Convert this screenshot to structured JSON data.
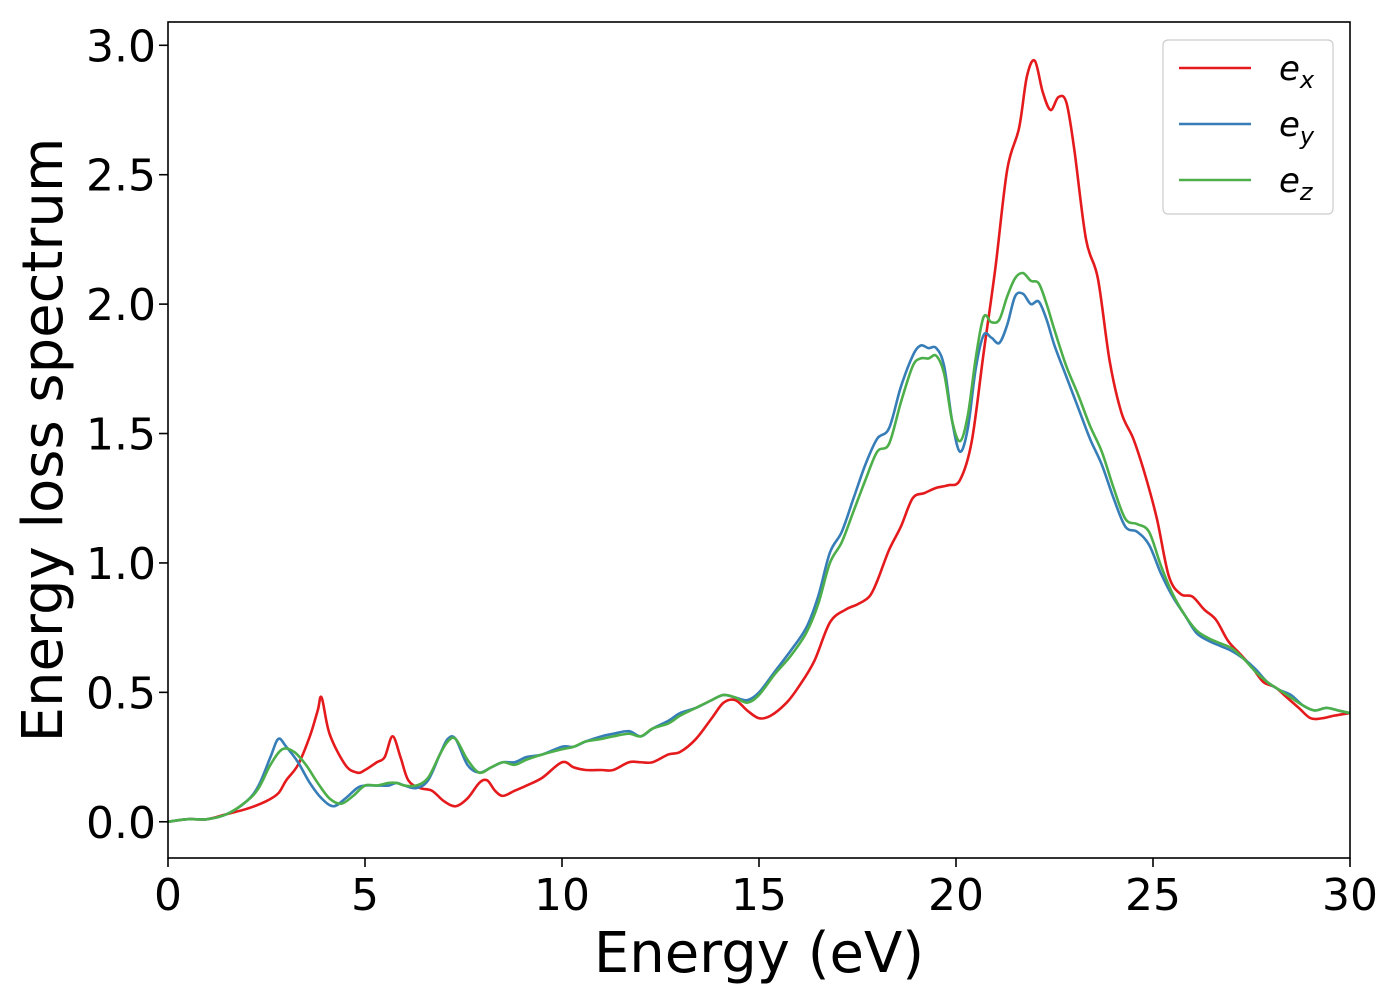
{
  "chart_data": {
    "type": "line",
    "xlabel": "Energy (eV)",
    "ylabel": "Energy loss spectrum",
    "xlim": [
      0,
      30
    ],
    "ylim": [
      -0.14,
      3.09
    ],
    "xticks": [
      0,
      5,
      10,
      15,
      20,
      25,
      30
    ],
    "xtick_labels": [
      "0",
      "5",
      "10",
      "15",
      "20",
      "25",
      "30"
    ],
    "yticks": [
      0.0,
      0.5,
      1.0,
      1.5,
      2.0,
      2.5,
      3.0
    ],
    "ytick_labels": [
      "0.0",
      "0.5",
      "1.0",
      "1.5",
      "2.0",
      "2.5",
      "3.0"
    ],
    "grid": false,
    "legend_position": "top-right",
    "series": [
      {
        "name": "e_x",
        "label_main": "e",
        "label_sub": "x",
        "color": "#e41a1c",
        "x": [
          0,
          0.5,
          1.0,
          1.5,
          2.0,
          2.5,
          2.8,
          3.0,
          3.3,
          3.6,
          3.8,
          3.9,
          4.1,
          4.5,
          4.8,
          5.0,
          5.3,
          5.5,
          5.7,
          5.9,
          6.1,
          6.4,
          6.7,
          7.0,
          7.3,
          7.6,
          7.9,
          8.1,
          8.3,
          8.5,
          8.8,
          9.1,
          9.5,
          10.0,
          10.3,
          10.6,
          11.0,
          11.3,
          11.7,
          12.0,
          12.3,
          12.7,
          13.0,
          13.4,
          13.8,
          14.1,
          14.4,
          14.7,
          15.0,
          15.3,
          15.7,
          16.0,
          16.4,
          16.8,
          17.2,
          17.5,
          17.8,
          18.0,
          18.3,
          18.6,
          18.9,
          19.2,
          19.5,
          19.8,
          20.1,
          20.4,
          20.7,
          21.0,
          21.3,
          21.6,
          21.8,
          22.0,
          22.2,
          22.4,
          22.6,
          22.8,
          23.0,
          23.3,
          23.6,
          23.9,
          24.2,
          24.5,
          24.8,
          25.1,
          25.4,
          25.7,
          26.0,
          26.3,
          26.6,
          26.9,
          27.2,
          27.5,
          27.8,
          28.1,
          28.4,
          28.7,
          29.0,
          29.3,
          29.6,
          30.0
        ],
        "y": [
          0.0,
          0.01,
          0.01,
          0.03,
          0.05,
          0.08,
          0.11,
          0.16,
          0.22,
          0.33,
          0.43,
          0.48,
          0.34,
          0.22,
          0.19,
          0.2,
          0.23,
          0.25,
          0.33,
          0.25,
          0.16,
          0.13,
          0.12,
          0.08,
          0.06,
          0.09,
          0.15,
          0.16,
          0.12,
          0.1,
          0.12,
          0.14,
          0.17,
          0.23,
          0.21,
          0.2,
          0.2,
          0.2,
          0.23,
          0.23,
          0.23,
          0.26,
          0.27,
          0.32,
          0.4,
          0.46,
          0.47,
          0.43,
          0.4,
          0.41,
          0.46,
          0.52,
          0.62,
          0.77,
          0.82,
          0.84,
          0.87,
          0.93,
          1.05,
          1.14,
          1.25,
          1.27,
          1.29,
          1.3,
          1.32,
          1.47,
          1.81,
          2.14,
          2.52,
          2.68,
          2.88,
          2.94,
          2.82,
          2.75,
          2.8,
          2.78,
          2.6,
          2.25,
          2.1,
          1.78,
          1.58,
          1.48,
          1.34,
          1.17,
          0.95,
          0.88,
          0.87,
          0.82,
          0.78,
          0.7,
          0.65,
          0.6,
          0.54,
          0.52,
          0.48,
          0.44,
          0.4,
          0.4,
          0.41,
          0.42
        ]
      },
      {
        "name": "e_y",
        "label_main": "e",
        "label_sub": "y",
        "color": "#377eb8",
        "x": [
          0,
          0.5,
          1.0,
          1.5,
          2.0,
          2.3,
          2.6,
          2.8,
          3.0,
          3.3,
          3.6,
          3.9,
          4.2,
          4.5,
          4.8,
          5.0,
          5.3,
          5.6,
          5.8,
          6.0,
          6.3,
          6.6,
          6.9,
          7.1,
          7.3,
          7.6,
          7.9,
          8.2,
          8.5,
          8.8,
          9.1,
          9.5,
          10.0,
          10.3,
          10.6,
          11.0,
          11.3,
          11.7,
          12.0,
          12.3,
          12.7,
          13.0,
          13.4,
          13.8,
          14.1,
          14.4,
          14.7,
          15.0,
          15.4,
          15.8,
          16.2,
          16.5,
          16.8,
          17.1,
          17.4,
          17.7,
          18.0,
          18.3,
          18.6,
          18.9,
          19.1,
          19.3,
          19.5,
          19.7,
          19.9,
          20.1,
          20.3,
          20.5,
          20.7,
          20.9,
          21.1,
          21.3,
          21.5,
          21.7,
          21.9,
          22.1,
          22.3,
          22.5,
          22.8,
          23.1,
          23.4,
          23.7,
          24.0,
          24.3,
          24.6,
          24.9,
          25.2,
          25.5,
          25.8,
          26.1,
          26.4,
          26.7,
          27.0,
          27.3,
          27.6,
          27.9,
          28.2,
          28.5,
          28.8,
          29.1,
          29.4,
          29.7,
          30.0
        ],
        "y": [
          0.0,
          0.01,
          0.01,
          0.03,
          0.08,
          0.14,
          0.25,
          0.32,
          0.29,
          0.23,
          0.15,
          0.09,
          0.06,
          0.09,
          0.13,
          0.14,
          0.14,
          0.14,
          0.15,
          0.14,
          0.13,
          0.16,
          0.26,
          0.32,
          0.32,
          0.22,
          0.19,
          0.21,
          0.23,
          0.23,
          0.25,
          0.26,
          0.29,
          0.29,
          0.31,
          0.33,
          0.34,
          0.35,
          0.33,
          0.36,
          0.39,
          0.42,
          0.44,
          0.47,
          0.49,
          0.48,
          0.47,
          0.5,
          0.58,
          0.66,
          0.75,
          0.87,
          1.04,
          1.12,
          1.25,
          1.38,
          1.48,
          1.52,
          1.68,
          1.8,
          1.84,
          1.83,
          1.83,
          1.76,
          1.55,
          1.43,
          1.52,
          1.75,
          1.88,
          1.87,
          1.85,
          1.92,
          2.03,
          2.04,
          2.0,
          2.01,
          1.94,
          1.84,
          1.72,
          1.6,
          1.48,
          1.38,
          1.25,
          1.14,
          1.12,
          1.07,
          0.96,
          0.87,
          0.8,
          0.73,
          0.7,
          0.68,
          0.66,
          0.63,
          0.59,
          0.54,
          0.51,
          0.49,
          0.45,
          0.43,
          0.44,
          0.43,
          0.42
        ]
      },
      {
        "name": "e_z",
        "label_main": "e",
        "label_sub": "z",
        "color": "#4daf4a",
        "x": [
          0,
          0.5,
          1.0,
          1.5,
          2.0,
          2.3,
          2.6,
          2.9,
          3.2,
          3.5,
          3.8,
          4.1,
          4.4,
          4.7,
          5.0,
          5.3,
          5.6,
          5.8,
          6.0,
          6.3,
          6.6,
          6.9,
          7.1,
          7.3,
          7.6,
          7.9,
          8.2,
          8.5,
          8.8,
          9.1,
          9.5,
          10.0,
          10.3,
          10.6,
          11.0,
          11.3,
          11.7,
          12.0,
          12.3,
          12.7,
          13.0,
          13.4,
          13.8,
          14.1,
          14.4,
          14.7,
          15.0,
          15.4,
          15.8,
          16.2,
          16.5,
          16.8,
          17.1,
          17.4,
          17.7,
          18.0,
          18.3,
          18.6,
          18.9,
          19.1,
          19.3,
          19.5,
          19.7,
          19.9,
          20.1,
          20.3,
          20.5,
          20.7,
          20.9,
          21.1,
          21.3,
          21.5,
          21.7,
          21.9,
          22.1,
          22.3,
          22.5,
          22.8,
          23.1,
          23.4,
          23.7,
          24.0,
          24.3,
          24.6,
          24.9,
          25.2,
          25.5,
          25.8,
          26.1,
          26.4,
          26.7,
          27.0,
          27.3,
          27.6,
          27.9,
          28.2,
          28.5,
          28.8,
          29.1,
          29.4,
          29.7,
          30.0
        ],
        "y": [
          0.0,
          0.01,
          0.01,
          0.03,
          0.08,
          0.13,
          0.22,
          0.28,
          0.27,
          0.22,
          0.15,
          0.09,
          0.07,
          0.1,
          0.14,
          0.14,
          0.15,
          0.15,
          0.14,
          0.14,
          0.17,
          0.26,
          0.31,
          0.32,
          0.24,
          0.19,
          0.21,
          0.23,
          0.22,
          0.24,
          0.26,
          0.28,
          0.29,
          0.31,
          0.32,
          0.33,
          0.34,
          0.33,
          0.36,
          0.38,
          0.41,
          0.44,
          0.47,
          0.49,
          0.48,
          0.46,
          0.49,
          0.57,
          0.64,
          0.73,
          0.84,
          1.0,
          1.08,
          1.2,
          1.32,
          1.43,
          1.46,
          1.62,
          1.76,
          1.79,
          1.79,
          1.8,
          1.73,
          1.55,
          1.47,
          1.57,
          1.79,
          1.95,
          1.93,
          1.94,
          2.03,
          2.1,
          2.12,
          2.09,
          2.08,
          2.0,
          1.9,
          1.76,
          1.65,
          1.53,
          1.43,
          1.29,
          1.17,
          1.15,
          1.12,
          0.99,
          0.88,
          0.8,
          0.74,
          0.71,
          0.69,
          0.67,
          0.63,
          0.58,
          0.54,
          0.51,
          0.48,
          0.45,
          0.43,
          0.44,
          0.43,
          0.42
        ]
      }
    ]
  }
}
